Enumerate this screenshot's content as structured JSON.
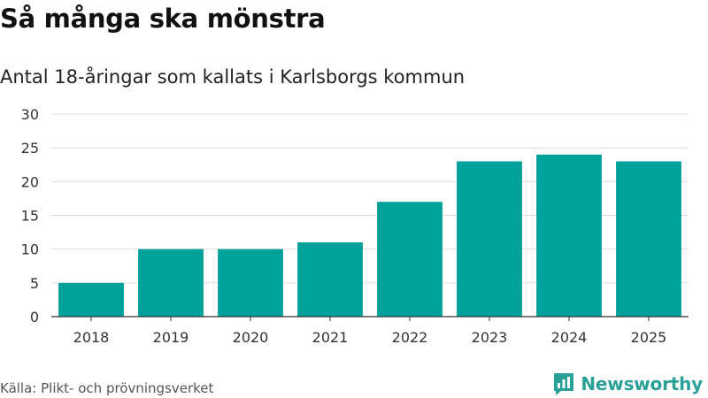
{
  "title": "Så många ska mönstra",
  "subtitle": "Antal 18-åringar som kallats i Karlsborgs kommun",
  "source": "Källa: Plikt- och prövningsverket",
  "brand": {
    "name": "Newsworthy",
    "icon": "newsworthy-logo-icon"
  },
  "colors": {
    "bar": "#00a19a",
    "grid": "#dddddd",
    "axis": "#333333",
    "brand": "#2aa198"
  },
  "chart_data": {
    "type": "bar",
    "title": "Så många ska mönstra",
    "subtitle": "Antal 18-åringar som kallats i Karlsborgs kommun",
    "categories": [
      "2018",
      "2019",
      "2020",
      "2021",
      "2022",
      "2023",
      "2024",
      "2025"
    ],
    "values": [
      5,
      10,
      10,
      11,
      17,
      23,
      24,
      23
    ],
    "xlabel": "",
    "ylabel": "",
    "ylim": [
      0,
      30
    ],
    "yticks": [
      0,
      5,
      10,
      15,
      20,
      25,
      30
    ],
    "grid": true,
    "legend": "none"
  }
}
